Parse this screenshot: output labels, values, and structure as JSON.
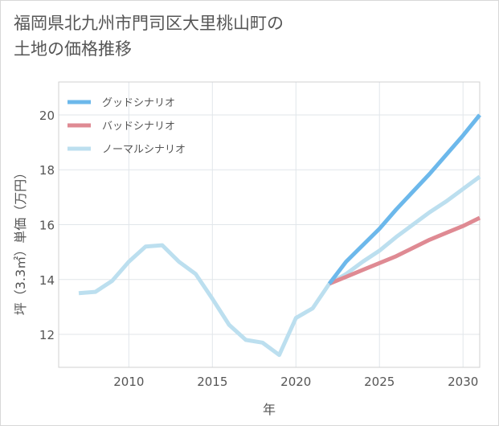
{
  "title": {
    "line1": "福岡県北九州市門司区大里桃山町の",
    "line2": "土地の価格推移"
  },
  "chart_data": {
    "type": "line",
    "xlabel": "年",
    "ylabel": "坪（3.3㎡）単価（万円）",
    "xlim": [
      2005.8,
      2031
    ],
    "ylim": [
      10.8,
      21.2
    ],
    "xticks": [
      2010,
      2015,
      2020,
      2025,
      2030
    ],
    "yticks": [
      12,
      14,
      16,
      18,
      20
    ],
    "grid": true,
    "legend_position": "top-left",
    "series": [
      {
        "name": "グッドシナリオ",
        "color": "#6cb8eb",
        "x": [
          2022,
          2023,
          2024,
          2025,
          2026,
          2027,
          2028,
          2029,
          2030,
          2031
        ],
        "y": [
          13.85,
          14.65,
          15.25,
          15.85,
          16.55,
          17.2,
          17.85,
          18.55,
          19.25,
          20.0
        ]
      },
      {
        "name": "バッドシナリオ",
        "color": "#df8a93",
        "x": [
          2022,
          2023,
          2024,
          2025,
          2026,
          2027,
          2028,
          2029,
          2030,
          2031
        ],
        "y": [
          13.85,
          14.1,
          14.35,
          14.6,
          14.85,
          15.15,
          15.45,
          15.7,
          15.95,
          16.25
        ]
      },
      {
        "name": "ノーマルシナリオ",
        "color": "#bcdfef",
        "x": [
          2007,
          2008,
          2009,
          2010,
          2011,
          2012,
          2013,
          2014,
          2015,
          2016,
          2017,
          2018,
          2019,
          2020,
          2021,
          2022,
          2023,
          2024,
          2025,
          2026,
          2027,
          2028,
          2029,
          2030,
          2031
        ],
        "y": [
          13.5,
          13.55,
          13.95,
          14.65,
          15.2,
          15.25,
          14.65,
          14.2,
          13.3,
          12.35,
          11.8,
          11.7,
          11.25,
          12.6,
          12.95,
          13.85,
          14.2,
          14.65,
          15.05,
          15.55,
          16.0,
          16.45,
          16.85,
          17.3,
          17.75
        ]
      }
    ]
  }
}
